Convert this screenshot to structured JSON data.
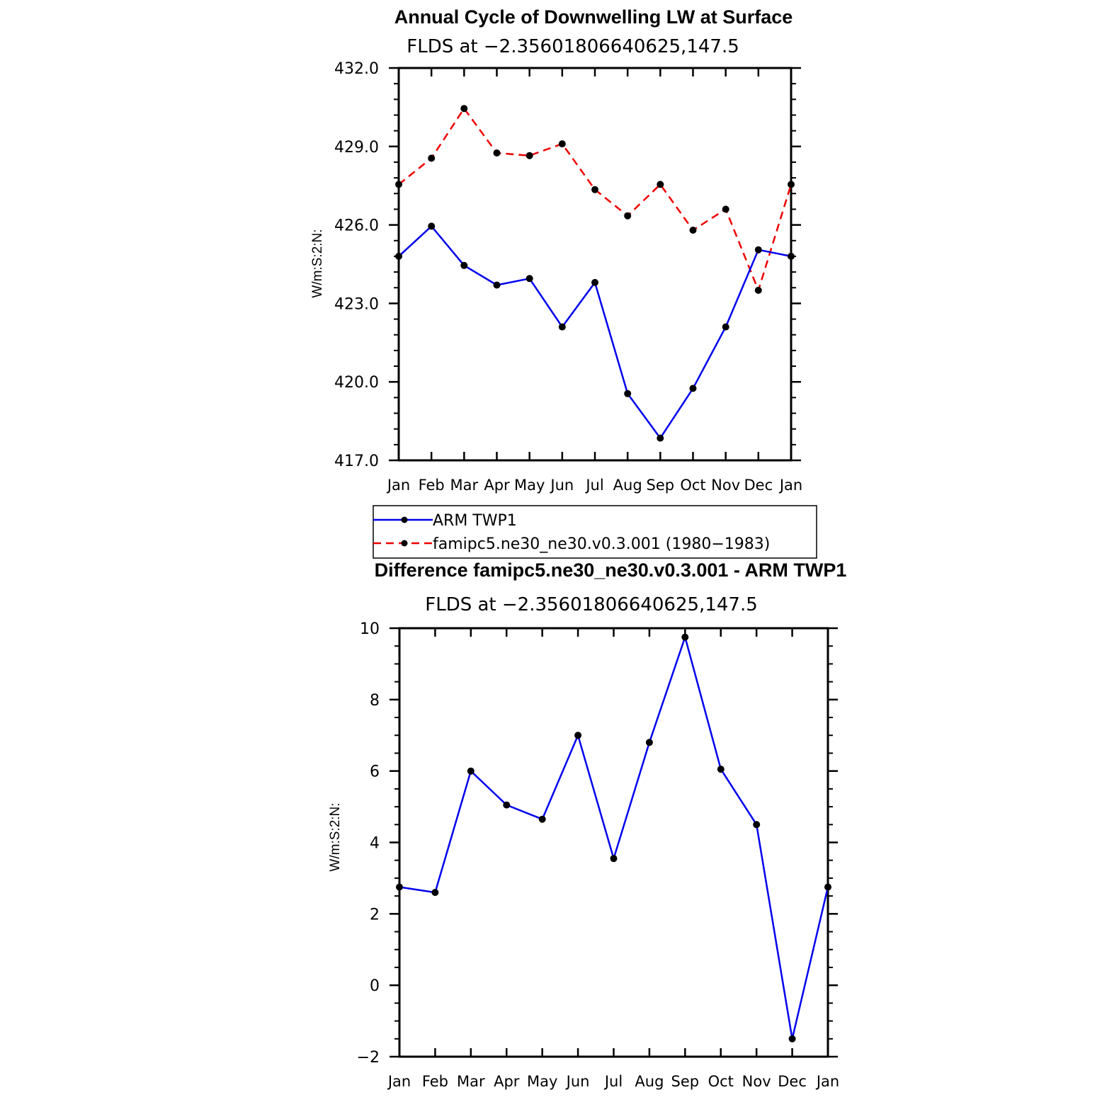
{
  "chart_data": [
    {
      "type": "line",
      "title": "Annual Cycle of Downwelling LW at Surface",
      "subtitle": "FLDS at −2.35601806640625,147.5",
      "ylabel": "W/m:S:2:N:",
      "xlabel": "",
      "categories": [
        "Jan",
        "Feb",
        "Mar",
        "Apr",
        "May",
        "Jun",
        "Jul",
        "Aug",
        "Sep",
        "Oct",
        "Nov",
        "Dec",
        "Jan"
      ],
      "ylim": [
        417.0,
        432.0
      ],
      "yticks": [
        "417.0",
        "420.0",
        "423.0",
        "426.0",
        "429.0",
        "432.0"
      ],
      "grid": false,
      "series": [
        {
          "name": "ARM TWP1",
          "color": "#0000ee",
          "dash": "solid",
          "marker": "filled-circle",
          "values": [
            424.8,
            425.95,
            424.45,
            423.7,
            423.95,
            422.1,
            423.8,
            419.55,
            417.85,
            419.75,
            422.1,
            425.05,
            424.8
          ]
        },
        {
          "name": "famipc5.ne30_ne30.v0.3.001 (1980−1983)",
          "color": "#ee0000",
          "dash": "dashed",
          "marker": "filled-circle",
          "values": [
            427.55,
            428.55,
            430.45,
            428.75,
            428.65,
            429.1,
            427.35,
            426.35,
            427.55,
            425.8,
            426.6,
            423.5,
            427.55
          ]
        }
      ],
      "legend": {
        "position": "bottom",
        "entries": [
          "ARM TWP1",
          "famipc5.ne30_ne30.v0.3.001 (1980−1983)"
        ]
      }
    },
    {
      "type": "line",
      "title": "Difference famipc5.ne30_ne30.v0.3.001 - ARM TWP1",
      "subtitle": "FLDS at −2.35601806640625,147.5",
      "ylabel": "W/m:S:2:N:",
      "xlabel": "",
      "categories": [
        "Jan",
        "Feb",
        "Mar",
        "Apr",
        "May",
        "Jun",
        "Jul",
        "Aug",
        "Sep",
        "Oct",
        "Nov",
        "Dec",
        "Jan"
      ],
      "ylim": [
        -2,
        10
      ],
      "yticks": [
        "−2",
        "0",
        "2",
        "4",
        "6",
        "8",
        "10"
      ],
      "grid": false,
      "series": [
        {
          "name": "",
          "color": "#0000ee",
          "dash": "solid",
          "marker": "filled-circle",
          "values": [
            2.75,
            2.6,
            6.0,
            5.05,
            4.65,
            7.0,
            3.55,
            6.8,
            9.75,
            6.05,
            4.5,
            -1.5,
            2.75
          ]
        }
      ]
    }
  ]
}
